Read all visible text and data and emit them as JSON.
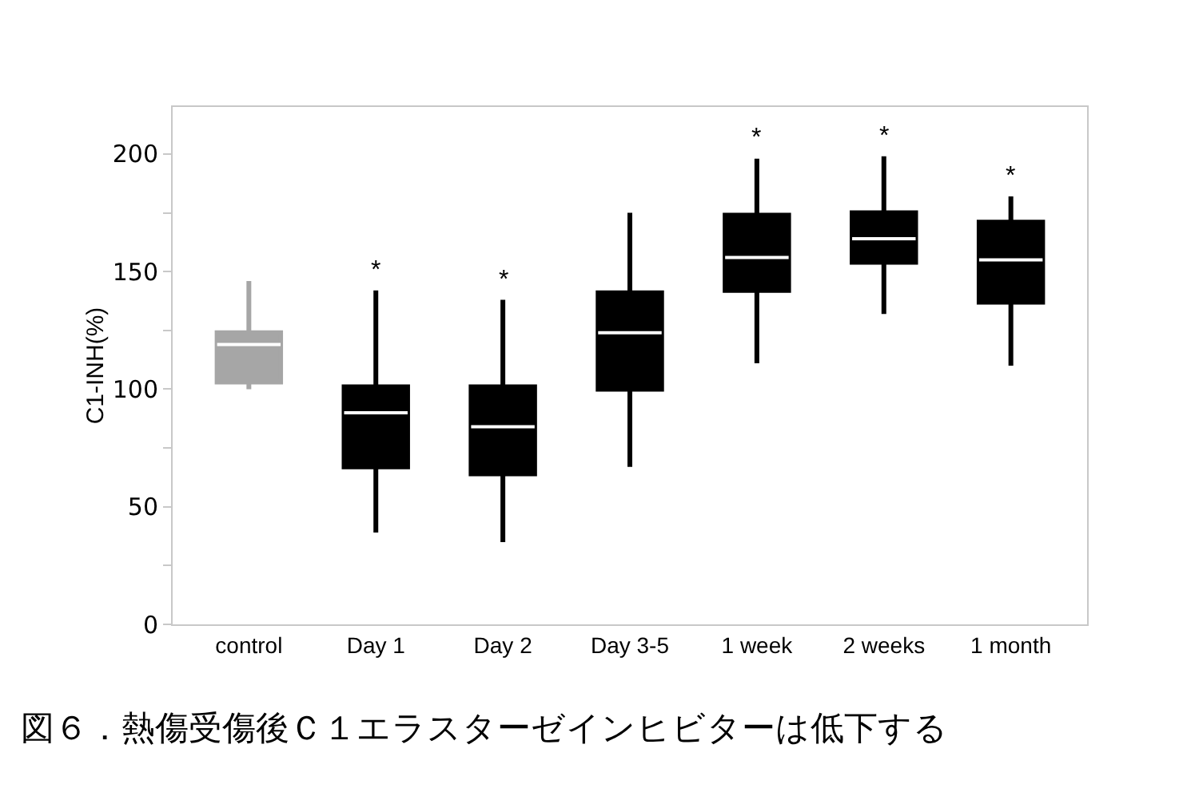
{
  "chart_data": {
    "type": "box",
    "ylabel": "C1-INH(%)",
    "categories": [
      "control",
      "Day 1",
      "Day 2",
      "Day 3-5",
      "1 week",
      "2 weeks",
      "1 month"
    ],
    "colors": [
      "#a6a6a6",
      "#000000",
      "#000000",
      "#000000",
      "#000000",
      "#000000",
      "#000000"
    ],
    "boxes": [
      {
        "low": 100,
        "q1": 103,
        "median": 119,
        "q3": 124,
        "high": 146
      },
      {
        "low": 39,
        "q1": 67,
        "median": 90,
        "q3": 101,
        "high": 142
      },
      {
        "low": 35,
        "q1": 64,
        "median": 84,
        "q3": 101,
        "high": 138
      },
      {
        "low": 67,
        "q1": 100,
        "median": 124,
        "q3": 141,
        "high": 175
      },
      {
        "low": 111,
        "q1": 142,
        "median": 156,
        "q3": 174,
        "high": 198
      },
      {
        "low": 132,
        "q1": 154,
        "median": 164,
        "q3": 175,
        "high": 199
      },
      {
        "low": 110,
        "q1": 137,
        "median": 155,
        "q3": 171,
        "high": 182
      }
    ],
    "ylim": [
      0,
      220
    ],
    "yticks": [
      0,
      {
        "value": 25,
        "label": null
      },
      50,
      {
        "value": 75,
        "label": null
      },
      100,
      {
        "value": 125,
        "label": null
      },
      150,
      {
        "value": 175,
        "label": null
      },
      200
    ],
    "grid": false,
    "annotations": [
      {
        "text": "*",
        "x": "Day 1",
        "y": 142
      },
      {
        "text": "*",
        "x": "Day 2",
        "y": 138
      },
      {
        "text": "*",
        "x": "1 week",
        "y": 198
      },
      {
        "text": "*",
        "x": "2 weeks",
        "y": 199
      },
      {
        "text": "*",
        "x": "1 month",
        "y": 182
      },
      "図６．熱傷受傷後Ｃ１エラスターゼインヒビターは低下する"
    ]
  }
}
